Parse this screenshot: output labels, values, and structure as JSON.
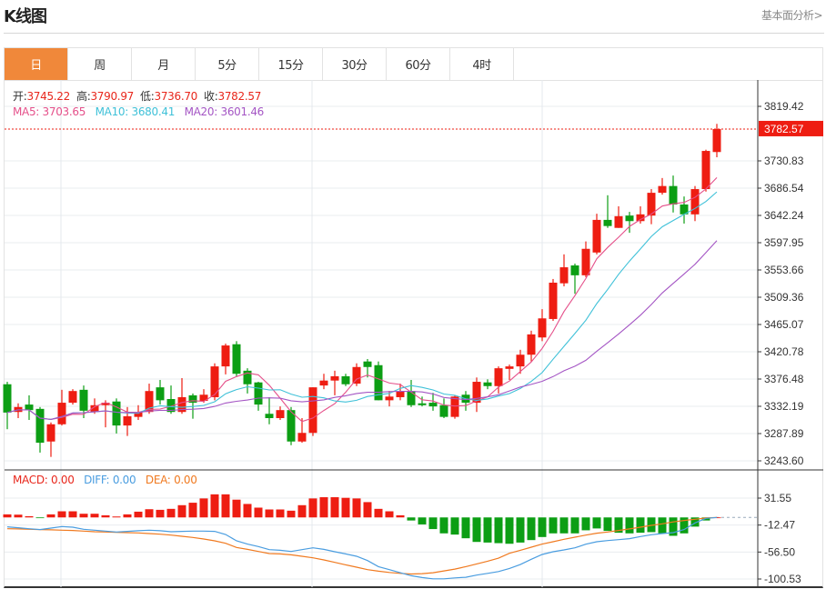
{
  "header": {
    "title": "K线图",
    "link": "基本面分析>"
  },
  "tabs": [
    {
      "label": "日",
      "active": true
    },
    {
      "label": "周"
    },
    {
      "label": "月"
    },
    {
      "label": "5分"
    },
    {
      "label": "15分"
    },
    {
      "label": "30分"
    },
    {
      "label": "60分"
    },
    {
      "label": "4时"
    }
  ],
  "ohlc_legend": {
    "open_label": "开:",
    "open": "3745.22",
    "high_label": "高:",
    "high": "3790.97",
    "low_label": "低:",
    "low": "3736.70",
    "close_label": "收:",
    "close": "3782.57"
  },
  "ma_legend": {
    "ma5": "MA5: 3703.65",
    "ma10": "MA10: 3680.41",
    "ma20": "MA20: 3601.46"
  },
  "macd_legend": {
    "macd": "MACD: 0.00",
    "diff": "DIFF: 0.00",
    "dea": "DEA: 0.00"
  },
  "colors": {
    "up": "#ee1d12",
    "down": "#0c9e14",
    "ma5": "#e5508a",
    "ma10": "#3fc1d8",
    "ma20": "#a455c4",
    "diff": "#4a9de0",
    "dea": "#f07a20",
    "active_tab": "#f0883a"
  },
  "chart_data": [
    {
      "type": "candlestick",
      "y_ticks": [
        "3819.42",
        "3730.83",
        "3686.54",
        "3642.24",
        "3597.95",
        "3553.66",
        "3509.36",
        "3465.07",
        "3420.78",
        "3376.48",
        "3332.19",
        "3287.89",
        "3243.60"
      ],
      "ylim": [
        3243.6,
        3819.42
      ],
      "current_price": "3782.57",
      "grid": true,
      "candles": [
        [
          3368,
          3322,
          3372,
          3295
        ],
        [
          3323,
          3331,
          3337,
          3313
        ],
        [
          3335,
          3326,
          3350,
          3310
        ],
        [
          3328,
          3273,
          3331,
          3257
        ],
        [
          3275,
          3303,
          3306,
          3250
        ],
        [
          3303,
          3338,
          3359,
          3301
        ],
        [
          3338,
          3357,
          3360,
          3335
        ],
        [
          3359,
          3325,
          3366,
          3313
        ],
        [
          3323,
          3334,
          3345,
          3320
        ],
        [
          3334,
          3338,
          3342,
          3298
        ],
        [
          3340,
          3301,
          3345,
          3288
        ],
        [
          3301,
          3316,
          3331,
          3284
        ],
        [
          3315,
          3323,
          3334,
          3310
        ],
        [
          3323,
          3357,
          3369,
          3320
        ],
        [
          3363,
          3342,
          3375,
          3335
        ],
        [
          3344,
          3323,
          3366,
          3320
        ],
        [
          3323,
          3347,
          3378,
          3320
        ],
        [
          3350,
          3338,
          3353,
          3312
        ],
        [
          3341,
          3351,
          3360,
          3338
        ],
        [
          3347,
          3397,
          3402,
          3342
        ],
        [
          3397,
          3431,
          3434,
          3384
        ],
        [
          3433,
          3385,
          3438,
          3381
        ],
        [
          3390,
          3368,
          3394,
          3353
        ],
        [
          3371,
          3335,
          3372,
          3325
        ],
        [
          3320,
          3313,
          3347,
          3303
        ],
        [
          3313,
          3326,
          3332,
          3310
        ],
        [
          3326,
          3275,
          3331,
          3269
        ],
        [
          3275,
          3289,
          3313,
          3273
        ],
        [
          3289,
          3363,
          3363,
          3284
        ],
        [
          3366,
          3374,
          3385,
          3360
        ],
        [
          3374,
          3381,
          3390,
          3350
        ],
        [
          3381,
          3368,
          3385,
          3365
        ],
        [
          3369,
          3396,
          3402,
          3365
        ],
        [
          3405,
          3396,
          3409,
          3379
        ],
        [
          3399,
          3342,
          3405,
          3342
        ],
        [
          3342,
          3348,
          3357,
          3332
        ],
        [
          3347,
          3356,
          3369,
          3342
        ],
        [
          3357,
          3334,
          3375,
          3331
        ],
        [
          3337,
          3334,
          3348,
          3332
        ],
        [
          3338,
          3332,
          3354,
          3325
        ],
        [
          3334,
          3315,
          3345,
          3313
        ],
        [
          3315,
          3348,
          3350,
          3312
        ],
        [
          3351,
          3338,
          3357,
          3325
        ],
        [
          3338,
          3372,
          3379,
          3323
        ],
        [
          3371,
          3365,
          3376,
          3360
        ],
        [
          3365,
          3394,
          3397,
          3353
        ],
        [
          3393,
          3397,
          3400,
          3375
        ],
        [
          3397,
          3416,
          3424,
          3385
        ],
        [
          3416,
          3449,
          3455,
          3405
        ],
        [
          3444,
          3475,
          3490,
          3438
        ],
        [
          3474,
          3533,
          3539,
          3471
        ],
        [
          3532,
          3558,
          3579,
          3527
        ],
        [
          3561,
          3545,
          3564,
          3515
        ],
        [
          3545,
          3588,
          3600,
          3542
        ],
        [
          3582,
          3635,
          3645,
          3579
        ],
        [
          3635,
          3625,
          3675,
          3622
        ],
        [
          3622,
          3641,
          3657,
          3622
        ],
        [
          3642,
          3633,
          3648,
          3614
        ],
        [
          3633,
          3644,
          3657,
          3629
        ],
        [
          3642,
          3679,
          3685,
          3628
        ],
        [
          3679,
          3690,
          3703,
          3676
        ],
        [
          3690,
          3660,
          3707,
          3647
        ],
        [
          3660,
          3644,
          3673,
          3629
        ],
        [
          3644,
          3685,
          3690,
          3633
        ],
        [
          3685,
          3747,
          3749,
          3681
        ],
        [
          3745.22,
          3782.57,
          3790.97,
          3736.7
        ]
      ],
      "ma_periods": [
        5,
        10,
        20
      ]
    },
    {
      "type": "bar+line",
      "y_ticks": [
        "31.55",
        "-12.47",
        "-56.50",
        "-100.53"
      ],
      "macd": [
        5,
        4.5,
        2,
        -1,
        5,
        10,
        10,
        6,
        6,
        3.5,
        1.5,
        5,
        9.4,
        13.4,
        12.4,
        14,
        20,
        24,
        31,
        37.7,
        37.7,
        29,
        22,
        16,
        13,
        13,
        11,
        20,
        31,
        33,
        33,
        32,
        31,
        25,
        14,
        10,
        3.5,
        -5,
        -11.4,
        -19,
        -26,
        -28,
        -34,
        -40,
        -41,
        -42,
        -43,
        -41,
        -37,
        -32,
        -26,
        -26,
        -26,
        -21,
        -18,
        -22,
        -25,
        -26,
        -25,
        -24,
        -26,
        -30,
        -26,
        -15,
        -5,
        0
      ],
      "diff": [
        -15.4,
        -16.9,
        -18.4,
        -19.8,
        -17.4,
        -14.9,
        -15.9,
        -19.3,
        -20.8,
        -22.3,
        -23.8,
        -22.8,
        -21.8,
        -20.8,
        -21.8,
        -23.3,
        -22.8,
        -22.3,
        -22.3,
        -22.8,
        -27.8,
        -38.2,
        -43.6,
        -47.6,
        -52.6,
        -53.6,
        -55.6,
        -52.6,
        -49.6,
        -52.1,
        -56.0,
        -59.5,
        -63.5,
        -70.4,
        -80.4,
        -85.3,
        -90.3,
        -95.2,
        -98.2,
        -100.2,
        -100.2,
        -98.7,
        -97.7,
        -94.2,
        -91.3,
        -88.3,
        -83.3,
        -76.9,
        -68.4,
        -60.5,
        -56.0,
        -53.1,
        -49.6,
        -43.7,
        -39.7,
        -37.7,
        -36.2,
        -34.7,
        -31.2,
        -28.3,
        -26.3,
        -24.8,
        -19.8,
        -8.9,
        -1.5,
        0
      ],
      "dea": [
        -18.4,
        -18.8,
        -19.3,
        -19.8,
        -20.3,
        -20.8,
        -21.3,
        -22.3,
        -23.3,
        -23.8,
        -24.3,
        -24.8,
        -25.3,
        -26.3,
        -27.3,
        -28.8,
        -30.8,
        -32.7,
        -35.2,
        -38.2,
        -42.2,
        -49.1,
        -52.1,
        -55.6,
        -59.0,
        -59.5,
        -61.0,
        -63.5,
        -66.0,
        -69.4,
        -73.4,
        -77.4,
        -81.3,
        -85.3,
        -87.8,
        -89.8,
        -91.3,
        -92.3,
        -91.8,
        -90.3,
        -87.3,
        -84.3,
        -80.4,
        -75.9,
        -71.4,
        -66.5,
        -58.5,
        -53.6,
        -48.6,
        -43.6,
        -39.7,
        -35.7,
        -32.2,
        -28.8,
        -25.8,
        -23.8,
        -21.3,
        -18.8,
        -15.9,
        -12.9,
        -10.4,
        -7.4,
        -5.0,
        -3.0,
        -1.0,
        0
      ]
    }
  ]
}
